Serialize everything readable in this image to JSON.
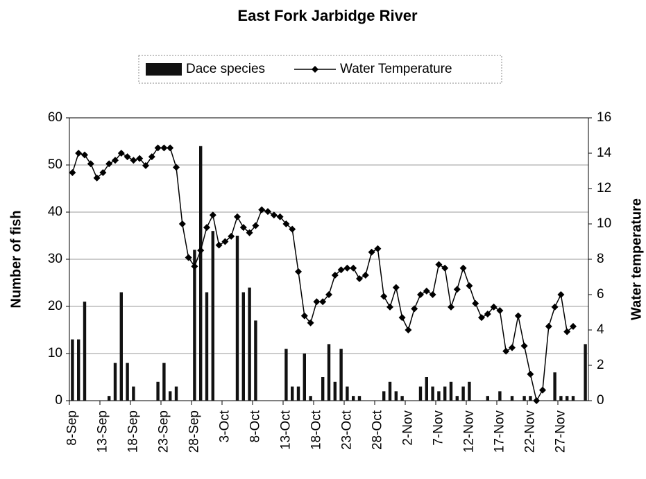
{
  "chart_data": {
    "type": "bar_line",
    "title": "East Fork Jarbidge River",
    "y_label": "Number of fish",
    "y2_label": "Water temperature",
    "categories": [
      "8-Sep",
      null,
      null,
      null,
      null,
      "13-Sep",
      null,
      null,
      null,
      null,
      "18-Sep",
      null,
      null,
      null,
      null,
      "23-Sep",
      null,
      null,
      null,
      null,
      "28-Sep",
      null,
      null,
      null,
      null,
      "3-Oct",
      null,
      null,
      null,
      null,
      "8-Oct",
      null,
      null,
      null,
      null,
      "13-Oct",
      null,
      null,
      null,
      null,
      "18-Oct",
      null,
      null,
      null,
      null,
      "23-Oct",
      null,
      null,
      null,
      null,
      "28-Oct",
      null,
      null,
      null,
      null,
      "2-Nov",
      null,
      null,
      null,
      null,
      "7-Nov",
      null,
      null,
      null,
      null,
      "12-Nov",
      null,
      null,
      null,
      null,
      "17-Nov",
      null,
      null,
      null,
      null,
      "22-Nov",
      null,
      null,
      null,
      null,
      "27-Nov",
      null,
      null,
      null,
      null
    ],
    "series": [
      {
        "name": "Dace species",
        "kind": "bar",
        "color": "#111111",
        "values": [
          13,
          13,
          21,
          0,
          0,
          0,
          1,
          8,
          23,
          8,
          3,
          0,
          0,
          0,
          4,
          8,
          2,
          3,
          0,
          0,
          32,
          54,
          23,
          36,
          0,
          0,
          0,
          35,
          23,
          24,
          17,
          0,
          0,
          0,
          0,
          11,
          3,
          3,
          10,
          1,
          0,
          5,
          12,
          4,
          11,
          3,
          1,
          1,
          0,
          0,
          0,
          2,
          4,
          2,
          1,
          0,
          0,
          3,
          5,
          3,
          2,
          3,
          4,
          1,
          3,
          4,
          0,
          0,
          1,
          0,
          2,
          0,
          1,
          0,
          1,
          1,
          0,
          0,
          0,
          6,
          1,
          1,
          1,
          0,
          12
        ]
      },
      {
        "name": "Water Temperature",
        "kind": "line",
        "axis": "y2",
        "color": "#000000",
        "values": [
          12.9,
          14.0,
          13.9,
          13.4,
          12.6,
          12.9,
          13.4,
          13.6,
          14.0,
          13.8,
          13.6,
          13.7,
          13.3,
          13.8,
          14.3,
          14.3,
          14.3,
          13.2,
          10.0,
          8.1,
          7.6,
          8.5,
          9.8,
          10.5,
          8.8,
          9.0,
          9.3,
          10.4,
          9.8,
          9.5,
          9.9,
          10.8,
          10.7,
          10.5,
          10.4,
          10.0,
          9.7,
          7.3,
          4.8,
          4.4,
          5.6,
          5.6,
          6.0,
          7.1,
          7.4,
          7.5,
          7.5,
          6.9,
          7.1,
          8.4,
          8.6,
          5.9,
          5.3,
          6.4,
          4.7,
          4.0,
          5.2,
          6.0,
          6.2,
          6.0,
          7.7,
          7.5,
          5.3,
          6.3,
          7.5,
          6.5,
          5.5,
          4.7,
          4.9,
          5.3,
          5.1,
          2.8,
          3.0,
          4.8,
          3.1,
          1.5,
          0,
          0.6,
          4.2,
          5.3,
          6.0,
          3.9,
          4.2,
          null,
          null
        ]
      }
    ],
    "ylim": [
      0,
      60
    ],
    "yticks": [
      0,
      10,
      20,
      30,
      40,
      50,
      60
    ],
    "y2lim": [
      0,
      16
    ],
    "y2ticks": [
      0,
      2,
      4,
      6,
      8,
      10,
      12,
      14,
      16
    ],
    "grid": true,
    "legend": "top"
  }
}
